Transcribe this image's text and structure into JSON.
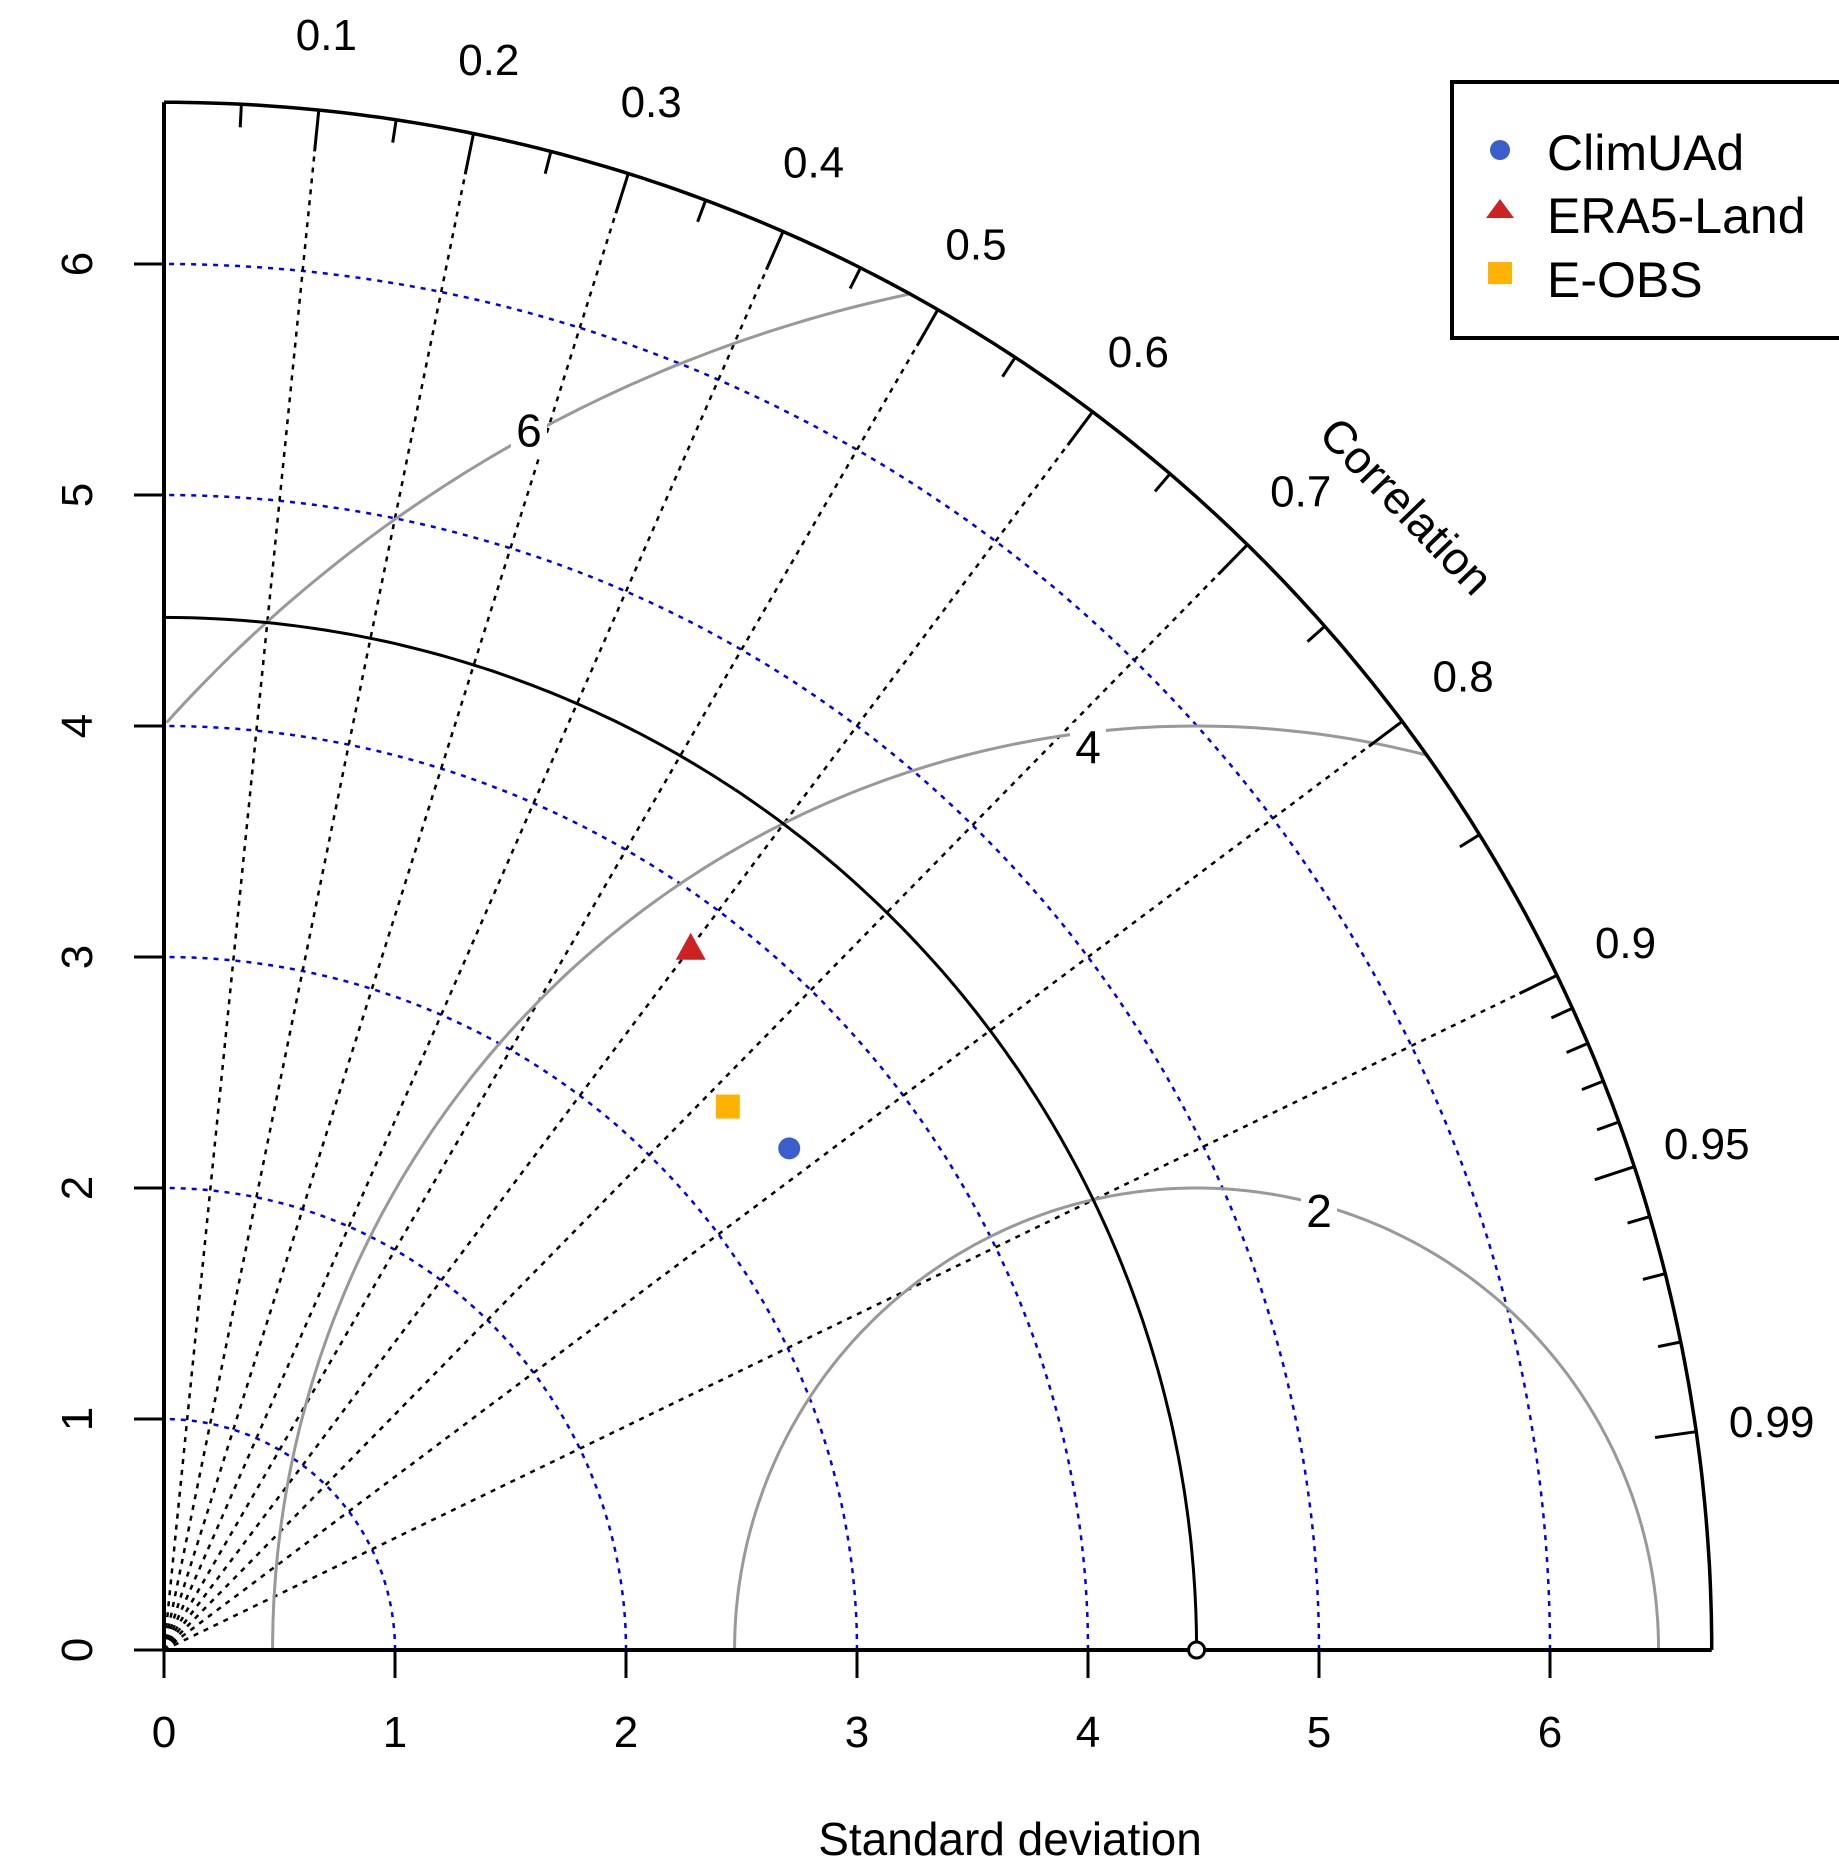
{
  "chart_data": {
    "type": "taylor",
    "xlabel": "Standard deviation",
    "corr_label": "Correlation",
    "sd_ticks": [
      0,
      1,
      2,
      3,
      4,
      5,
      6
    ],
    "sd_max": 6.7,
    "reference_sd": 4.47,
    "corr_ticks": [
      0.1,
      0.2,
      0.3,
      0.4,
      0.5,
      0.6,
      0.7,
      0.8,
      0.9,
      0.95,
      0.99
    ],
    "rms_contours": [
      2,
      4,
      6
    ],
    "grid": true,
    "legend_position": "top-right",
    "series": [
      {
        "name": "ClimUAd",
        "sd": 3.47,
        "corr": 0.78,
        "marker": "circle",
        "color": "#3a5fcd"
      },
      {
        "name": "ERA5-Land",
        "sd": 3.8,
        "corr": 0.6,
        "marker": "triangle",
        "color": "#cc2222"
      },
      {
        "name": "E-OBS",
        "sd": 3.39,
        "corr": 0.72,
        "marker": "square",
        "color": "#ffb300"
      }
    ]
  }
}
